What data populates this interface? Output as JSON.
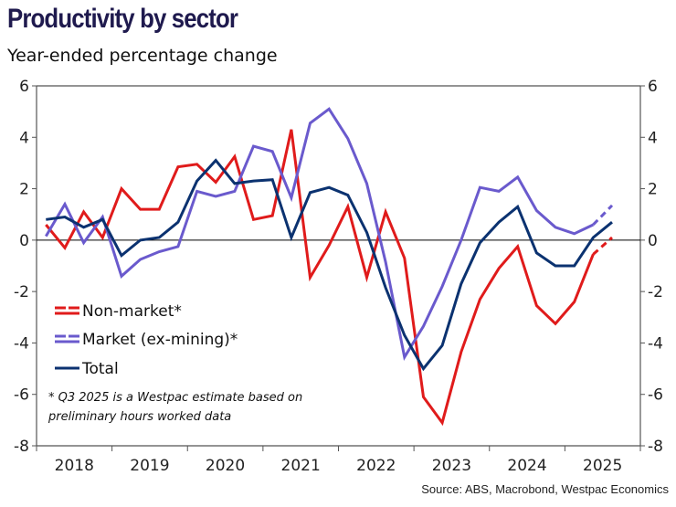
{
  "header": {
    "title": "Productivity by sector",
    "subtitle": "Year-ended percentage change"
  },
  "footer": {
    "source": "Source: ABS, Macrobond, Westpac Economics"
  },
  "chart_data": {
    "type": "line",
    "title": "Productivity by sector",
    "subtitle": "Year-ended percentage change",
    "xlabel": "",
    "ylabel": "",
    "ylim": [
      -8,
      6
    ],
    "yticks": [
      6,
      4,
      2,
      0,
      -2,
      -4,
      -6,
      -8
    ],
    "ytick_labels": [
      "6",
      "4",
      "2",
      "0",
      "-2",
      "-4",
      "-6",
      "-8"
    ],
    "y2ticks": [
      6,
      4,
      2,
      0,
      -2,
      -4,
      -6,
      -8
    ],
    "y2tick_labels": [
      "6",
      "4",
      "2",
      "0",
      "-2",
      "-4",
      "-6",
      "-8"
    ],
    "xtick_labels": [
      "2018",
      "2019",
      "2020",
      "2021",
      "2022",
      "2023",
      "2024",
      "2025"
    ],
    "x": [
      "Q1 2018",
      "Q2 2018",
      "Q3 2018",
      "Q4 2018",
      "Q1 2019",
      "Q2 2019",
      "Q3 2019",
      "Q4 2019",
      "Q1 2020",
      "Q2 2020",
      "Q3 2020",
      "Q4 2020",
      "Q1 2021",
      "Q2 2021",
      "Q3 2021",
      "Q4 2021",
      "Q1 2022",
      "Q2 2022",
      "Q3 2022",
      "Q4 2022",
      "Q1 2023",
      "Q2 2023",
      "Q3 2023",
      "Q4 2023",
      "Q1 2024",
      "Q2 2024",
      "Q3 2024",
      "Q4 2024",
      "Q1 2025",
      "Q2 2025",
      "Q3 2025"
    ],
    "grid": false,
    "zero_line": true,
    "legend_position": "bottom-left",
    "series": [
      {
        "name": "Non-market*",
        "color": "#e01b1b",
        "estimate_last": true,
        "values": [
          0.6,
          -0.3,
          1.1,
          0.1,
          2.0,
          1.2,
          1.2,
          2.85,
          2.95,
          2.25,
          3.25,
          0.8,
          0.95,
          4.3,
          -1.45,
          -0.2,
          1.3,
          -1.45,
          1.1,
          -0.7,
          -6.1,
          -7.1,
          -4.35,
          -2.3,
          -1.1,
          -0.25,
          -2.55,
          -3.25,
          -2.4,
          -0.55,
          0.1
        ]
      },
      {
        "name": "Market (ex-mining)*",
        "color": "#6a5acd",
        "estimate_last": true,
        "values": [
          0.15,
          1.4,
          -0.1,
          0.9,
          -1.4,
          -0.75,
          -0.45,
          -0.25,
          1.9,
          1.7,
          1.9,
          3.65,
          3.45,
          1.65,
          4.55,
          5.1,
          3.95,
          2.2,
          -0.85,
          -4.55,
          -3.35,
          -1.8,
          0.0,
          2.05,
          1.9,
          2.45,
          1.15,
          0.5,
          0.25,
          0.6,
          1.35
        ]
      },
      {
        "name": "Total",
        "color": "#0b3270",
        "estimate_last": false,
        "values": [
          0.8,
          0.9,
          0.5,
          0.8,
          -0.6,
          0.0,
          0.1,
          0.7,
          2.3,
          3.1,
          2.2,
          2.3,
          2.35,
          0.1,
          1.85,
          2.05,
          1.75,
          0.3,
          -1.85,
          -3.7,
          -5.0,
          -4.1,
          -1.7,
          -0.1,
          0.7,
          1.3,
          -0.5,
          -1.0,
          -1.0,
          0.1,
          0.7
        ]
      }
    ],
    "annotation": [
      "* Q3 2025 is a Westpac estimate based on",
      "preliminary hours worked data"
    ]
  }
}
